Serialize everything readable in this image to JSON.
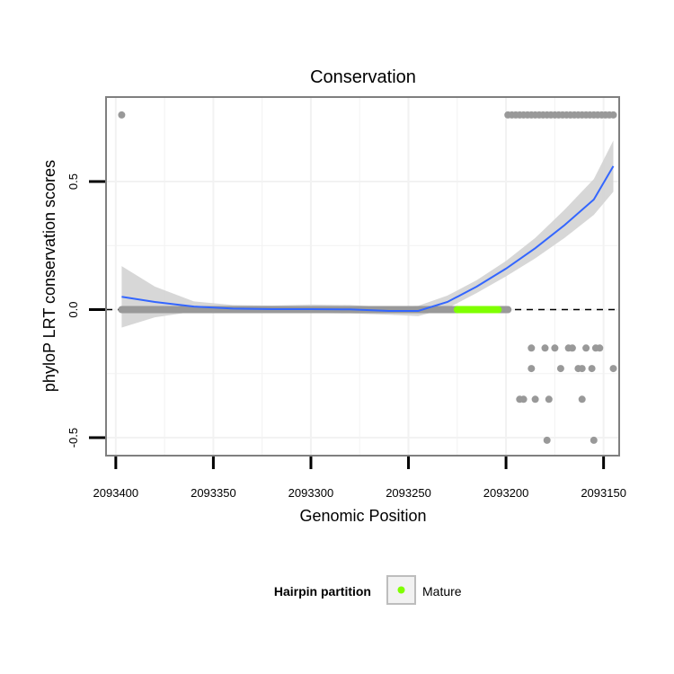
{
  "chart_data": {
    "type": "scatter",
    "title": "Conservation",
    "xlabel": "Genomic Position",
    "ylabel": "phyloP LRT conservation scores",
    "x_reversed": true,
    "xlim": [
      2093405,
      2093142
    ],
    "ylim": [
      -0.57,
      0.83
    ],
    "x_ticks": [
      2093400,
      2093350,
      2093300,
      2093250,
      2093200,
      2093150
    ],
    "x_tick_labels": [
      "2093400",
      "2093350",
      "2093300",
      "2093250",
      "2093200",
      "2093150"
    ],
    "y_ticks": [
      -0.5,
      0.0,
      0.5
    ],
    "y_tick_labels": [
      "-0.5",
      "0.0",
      "0.5"
    ],
    "grid": true,
    "reference_line": {
      "y": 0.0,
      "style": "dashed"
    },
    "colors": {
      "points": "#999999",
      "mature": "#7fff00",
      "smooth_line": "#3366ff",
      "ribbon": "#d3d3d3",
      "panel_border": "#7f7f7f",
      "grid": "#f2f2f2"
    },
    "series": [
      {
        "role": "conservation scores",
        "points": [
          {
            "x": 2093397,
            "y": 0.76
          },
          {
            "x": 2093199,
            "y": 0.76
          },
          {
            "x": 2093197,
            "y": 0.76
          },
          {
            "x": 2093195,
            "y": 0.76
          },
          {
            "x": 2093193,
            "y": 0.76
          },
          {
            "x": 2093191,
            "y": 0.76
          },
          {
            "x": 2093189,
            "y": 0.76
          },
          {
            "x": 2093187,
            "y": 0.76
          },
          {
            "x": 2093185,
            "y": 0.76
          },
          {
            "x": 2093183,
            "y": 0.76
          },
          {
            "x": 2093181,
            "y": 0.76
          },
          {
            "x": 2093179,
            "y": 0.76
          },
          {
            "x": 2093177,
            "y": 0.76
          },
          {
            "x": 2093175,
            "y": 0.76
          },
          {
            "x": 2093173,
            "y": 0.76
          },
          {
            "x": 2093171,
            "y": 0.76
          },
          {
            "x": 2093169,
            "y": 0.76
          },
          {
            "x": 2093167,
            "y": 0.76
          },
          {
            "x": 2093165,
            "y": 0.76
          },
          {
            "x": 2093163,
            "y": 0.76
          },
          {
            "x": 2093161,
            "y": 0.76
          },
          {
            "x": 2093159,
            "y": 0.76
          },
          {
            "x": 2093157,
            "y": 0.76
          },
          {
            "x": 2093155,
            "y": 0.76
          },
          {
            "x": 2093153,
            "y": 0.76
          },
          {
            "x": 2093151,
            "y": 0.76
          },
          {
            "x": 2093149,
            "y": 0.76
          },
          {
            "x": 2093147,
            "y": 0.76
          },
          {
            "x": 2093145,
            "y": 0.76
          },
          {
            "x": 2093187,
            "y": -0.15
          },
          {
            "x": 2093180,
            "y": -0.15
          },
          {
            "x": 2093175,
            "y": -0.15
          },
          {
            "x": 2093168,
            "y": -0.15
          },
          {
            "x": 2093166,
            "y": -0.15
          },
          {
            "x": 2093159,
            "y": -0.15
          },
          {
            "x": 2093154,
            "y": -0.15
          },
          {
            "x": 2093152,
            "y": -0.15
          },
          {
            "x": 2093187,
            "y": -0.23
          },
          {
            "x": 2093172,
            "y": -0.23
          },
          {
            "x": 2093163,
            "y": -0.23
          },
          {
            "x": 2093161,
            "y": -0.23
          },
          {
            "x": 2093156,
            "y": -0.23
          },
          {
            "x": 2093145,
            "y": -0.23
          },
          {
            "x": 2093193,
            "y": -0.35
          },
          {
            "x": 2093191,
            "y": -0.35
          },
          {
            "x": 2093185,
            "y": -0.35
          },
          {
            "x": 2093178,
            "y": -0.35
          },
          {
            "x": 2093161,
            "y": -0.35
          },
          {
            "x": 2093179,
            "y": -0.51
          },
          {
            "x": 2093155,
            "y": -0.51
          }
        ],
        "zero_run": {
          "from": 2093397,
          "to": 2093199,
          "y": 0.0
        }
      },
      {
        "name": "Mature",
        "segment": {
          "from": 2093225,
          "to": 2093204,
          "y": 0.0
        }
      }
    ],
    "smooth": {
      "x": [
        2093397,
        2093380,
        2093360,
        2093340,
        2093320,
        2093300,
        2093280,
        2093260,
        2093245,
        2093230,
        2093215,
        2093200,
        2093185,
        2093170,
        2093155,
        2093145
      ],
      "y": [
        0.05,
        0.03,
        0.012,
        0.004,
        0.002,
        0.002,
        0.001,
        -0.005,
        -0.005,
        0.03,
        0.09,
        0.16,
        0.24,
        0.33,
        0.43,
        0.56
      ],
      "lower": [
        -0.07,
        -0.03,
        -0.008,
        -0.01,
        -0.012,
        -0.013,
        -0.015,
        -0.02,
        -0.025,
        0.005,
        0.065,
        0.13,
        0.2,
        0.28,
        0.37,
        0.46
      ],
      "upper": [
        0.17,
        0.09,
        0.032,
        0.018,
        0.016,
        0.02,
        0.018,
        0.01,
        0.015,
        0.055,
        0.115,
        0.19,
        0.28,
        0.39,
        0.51,
        0.66
      ]
    },
    "legend": {
      "title": "Hairpin partition",
      "items": [
        {
          "label": "Mature",
          "color": "#7fff00"
        }
      ],
      "placement": "bottom"
    }
  }
}
